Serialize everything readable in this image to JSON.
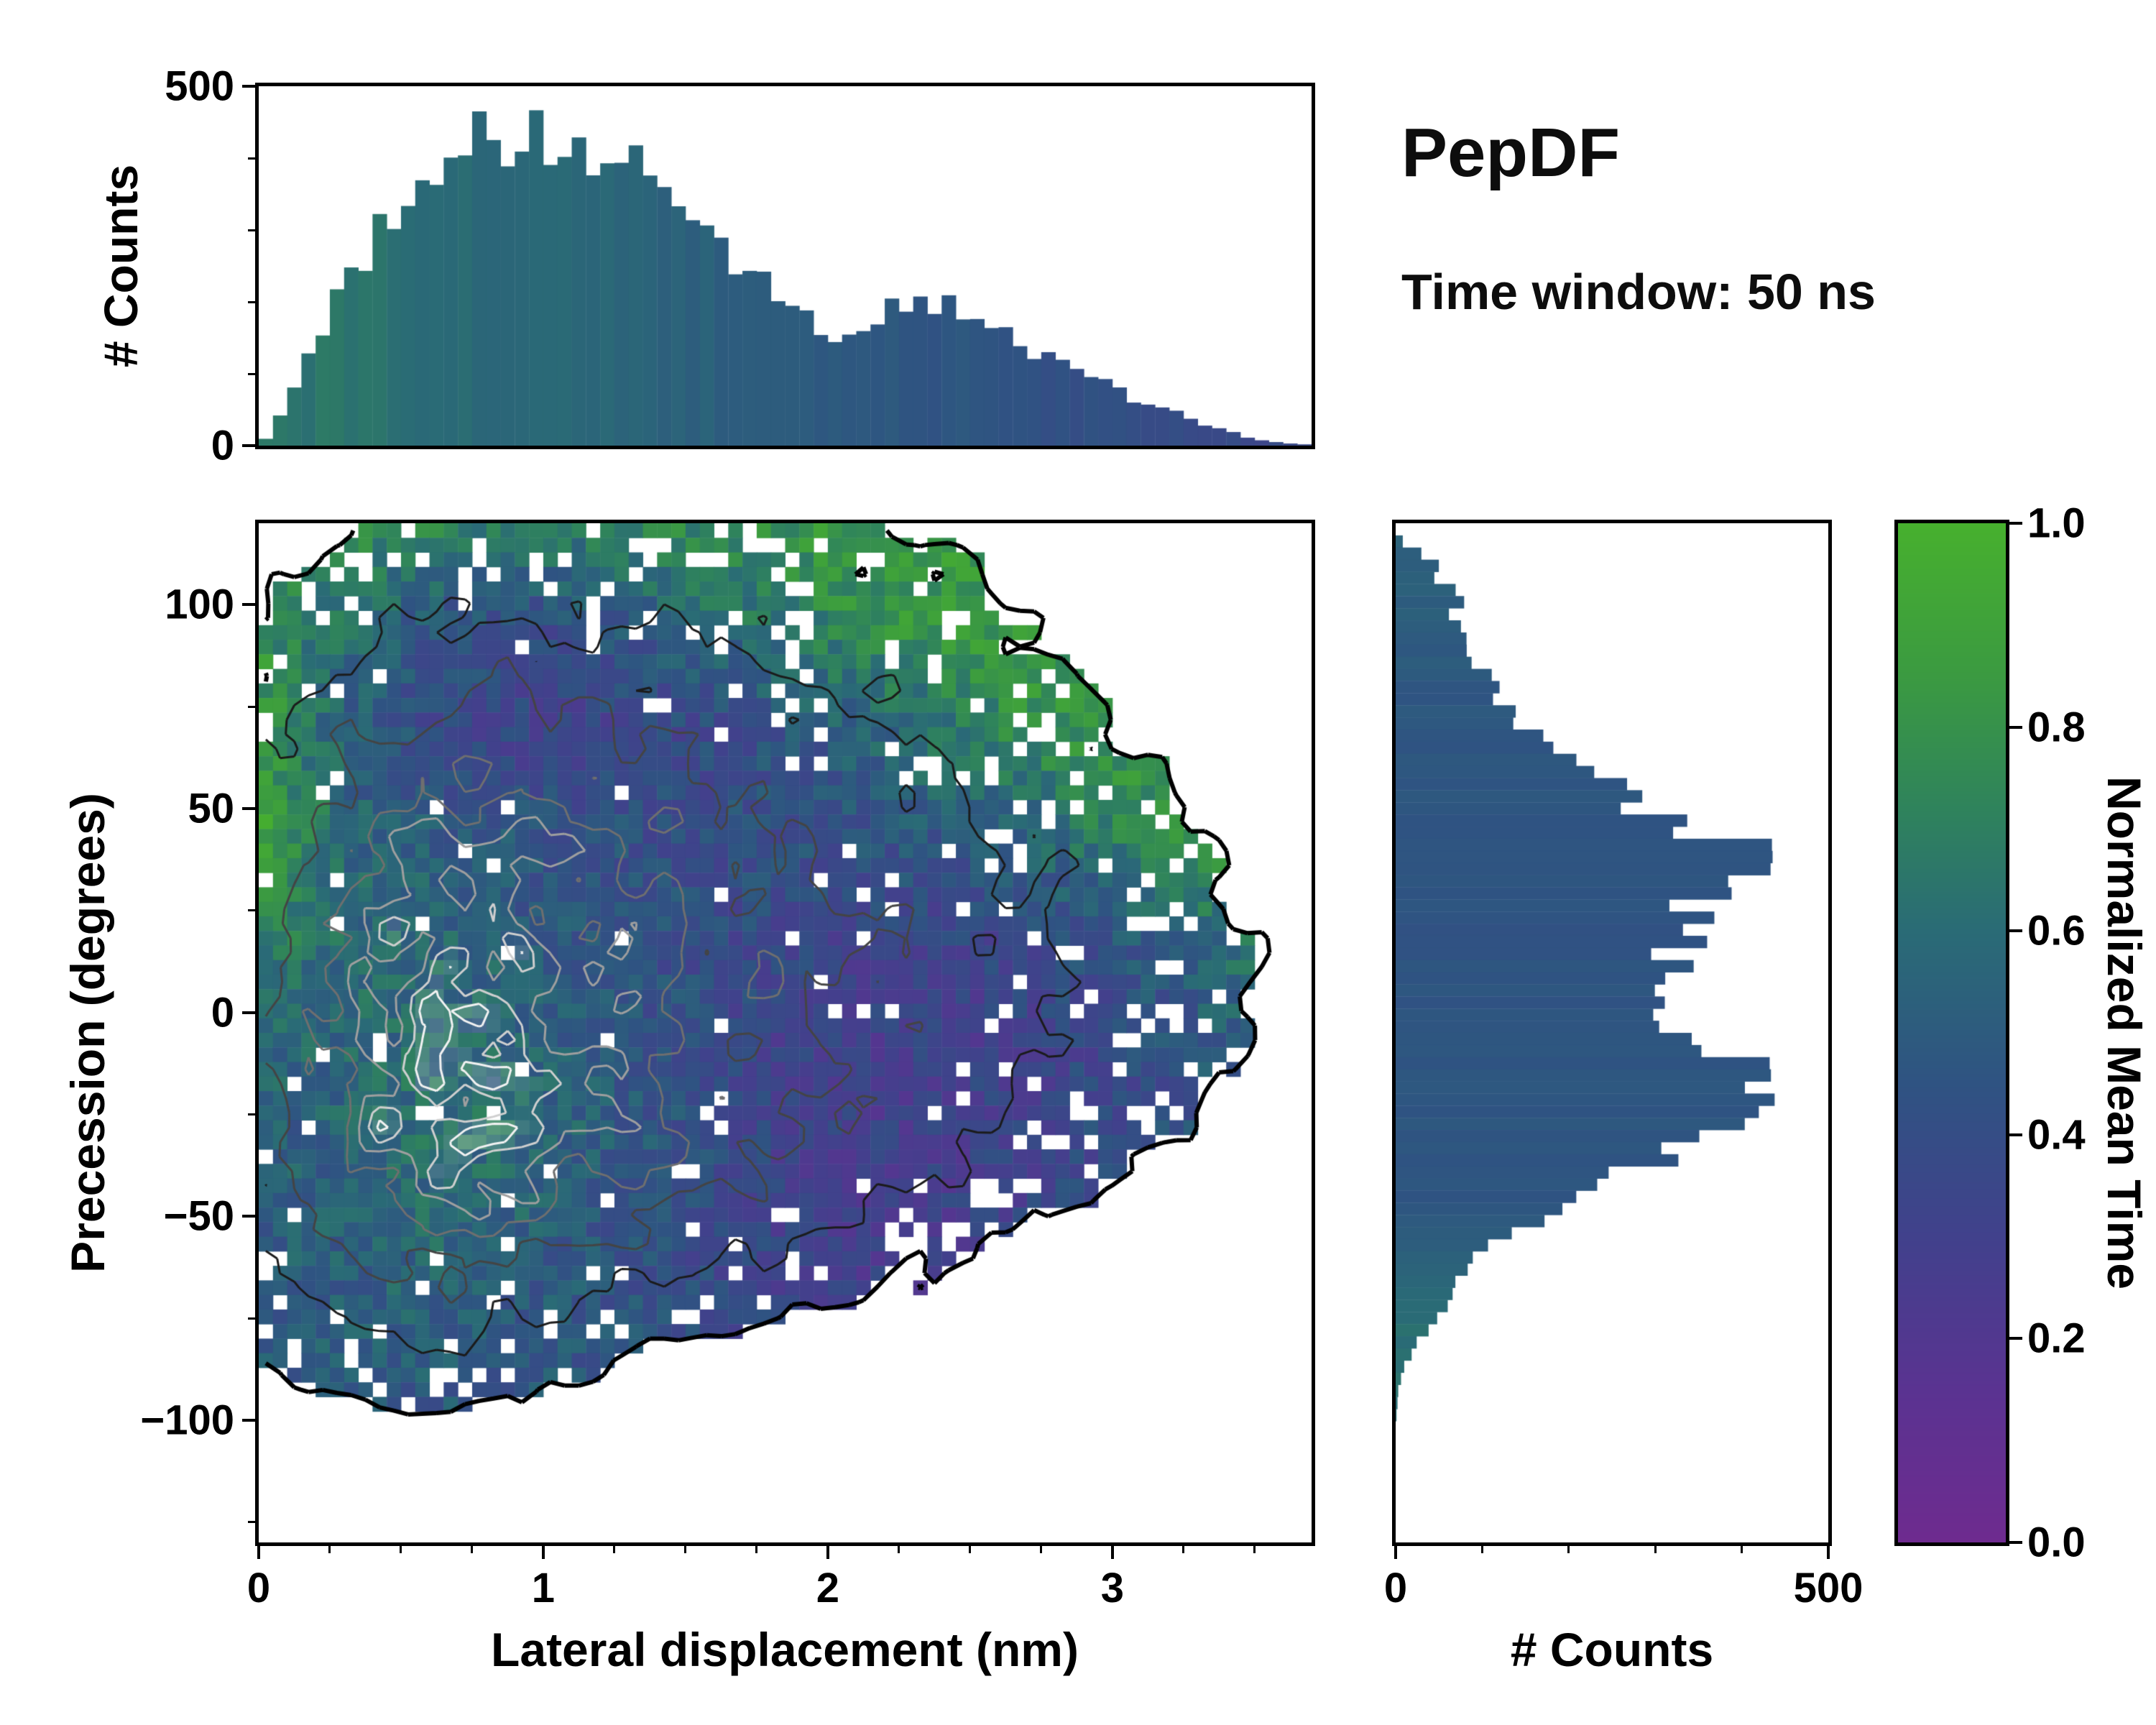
{
  "title": "PepDF",
  "subtitle": "Time window: 50 ns",
  "chart_data": [
    {
      "id": "top-histogram",
      "type": "bar",
      "ylabel": "# Counts",
      "x_range": [
        0,
        3.7
      ],
      "y_range": [
        0,
        500
      ],
      "y_ticks": [
        0,
        500
      ],
      "bin_width": 0.05,
      "bar_value_gradient": {
        "start": 0.66,
        "end": 0.36
      },
      "values": [
        10,
        40,
        80,
        120,
        160,
        200,
        230,
        260,
        295,
        315,
        340,
        370,
        400,
        420,
        432,
        445,
        450,
        430,
        420,
        425,
        415,
        420,
        410,
        400,
        415,
        405,
        390,
        370,
        345,
        330,
        310,
        300,
        280,
        262,
        240,
        230,
        210,
        195,
        175,
        160,
        150,
        155,
        165,
        180,
        190,
        196,
        200,
        190,
        200,
        185,
        175,
        160,
        150,
        140,
        130,
        120,
        110,
        100,
        95,
        85,
        75,
        65,
        55,
        50,
        45,
        35,
        30,
        25,
        18,
        12,
        8,
        5,
        3,
        2
      ]
    },
    {
      "id": "joint-heatmap",
      "type": "heatmap",
      "xlabel": "Lateral displacement (nm)",
      "ylabel": "Precession (degrees)",
      "colormap_label": "Normalized Mean Time",
      "x_range": [
        0,
        3.7
      ],
      "y_range": [
        -130,
        120
      ],
      "x_ticks": [
        0,
        1,
        2,
        3
      ],
      "y_ticks": [
        -100,
        -50,
        0,
        50,
        100
      ],
      "colorbar_ticks": [
        0,
        0.2,
        0.4,
        0.6,
        0.8,
        1
      ],
      "grid_nx": 74,
      "grid_ny": 70,
      "mask_threshold": 0.14,
      "colormap_stops": [
        [
          0,
          "#6e2b8f"
        ],
        [
          0.15,
          "#5a3391"
        ],
        [
          0.3,
          "#41418c"
        ],
        [
          0.45,
          "#2f5382"
        ],
        [
          0.6,
          "#2a6b76"
        ],
        [
          0.72,
          "#2f835c"
        ],
        [
          0.85,
          "#3b9a41"
        ],
        [
          1,
          "#47b02e"
        ]
      ],
      "contours": [
        {
          "level": 0.14,
          "color": "#000000",
          "width": 6
        },
        {
          "level": 0.3,
          "color": "#1b1b1b",
          "width": 3
        },
        {
          "level": 0.46,
          "color": "#444444",
          "width": 3
        },
        {
          "level": 0.62,
          "color": "#6f6f6f",
          "width": 3
        },
        {
          "level": 0.76,
          "color": "#9f9f9f",
          "width": 3
        },
        {
          "level": 0.88,
          "color": "#cfcfcf",
          "width": 3
        },
        {
          "level": 0.97,
          "color": "#f2f2f2",
          "width": 3
        }
      ],
      "density_grid": [
        [
          0.08,
          0.14,
          0.18,
          0.2,
          0.18,
          0.16,
          0.15,
          0.12,
          0.1,
          0.05,
          0.02,
          0,
          0
        ],
        [
          0.14,
          0.26,
          0.32,
          0.34,
          0.3,
          0.28,
          0.26,
          0.22,
          0.18,
          0.12,
          0.05,
          0.02,
          0
        ],
        [
          0.22,
          0.38,
          0.48,
          0.52,
          0.46,
          0.4,
          0.35,
          0.3,
          0.26,
          0.2,
          0.12,
          0.05,
          0.02
        ],
        [
          0.32,
          0.58,
          0.72,
          0.76,
          0.66,
          0.55,
          0.46,
          0.4,
          0.35,
          0.28,
          0.2,
          0.13,
          0.06
        ],
        [
          0.36,
          0.66,
          0.86,
          0.82,
          0.7,
          0.6,
          0.52,
          0.45,
          0.38,
          0.3,
          0.22,
          0.16,
          0.08
        ],
        [
          0.4,
          0.72,
          0.92,
          0.86,
          0.74,
          0.62,
          0.53,
          0.46,
          0.38,
          0.3,
          0.22,
          0.16,
          0.08
        ],
        [
          0.38,
          0.7,
          1.0,
          0.96,
          0.76,
          0.62,
          0.5,
          0.42,
          0.35,
          0.26,
          0.18,
          0.11,
          0.05
        ],
        [
          0.32,
          0.52,
          0.62,
          0.56,
          0.46,
          0.38,
          0.32,
          0.25,
          0.18,
          0.1,
          0.05,
          0.02,
          0
        ],
        [
          0.16,
          0.26,
          0.32,
          0.26,
          0.18,
          0.12,
          0.08,
          0.04,
          0.02,
          0,
          0,
          0,
          0
        ],
        [
          0.02,
          0.06,
          0.08,
          0.06,
          0.02,
          0,
          0,
          0,
          0,
          0,
          0,
          0,
          0
        ],
        [
          0,
          0,
          0,
          0,
          0,
          0,
          0,
          0,
          0,
          0,
          0,
          0,
          0
        ]
      ],
      "mean_time_grid": [
        [
          0.82,
          0.78,
          0.72,
          0.66,
          0.7,
          0.76,
          0.82,
          0.84,
          0.85,
          0.85,
          0.85,
          0.85,
          0.85
        ],
        [
          0.8,
          0.6,
          0.45,
          0.4,
          0.45,
          0.55,
          0.68,
          0.78,
          0.84,
          0.85,
          0.85,
          0.85,
          0.85
        ],
        [
          0.85,
          0.52,
          0.38,
          0.32,
          0.33,
          0.38,
          0.45,
          0.55,
          0.68,
          0.8,
          0.85,
          0.85,
          0.85
        ],
        [
          0.9,
          0.56,
          0.5,
          0.45,
          0.42,
          0.4,
          0.42,
          0.45,
          0.5,
          0.6,
          0.75,
          0.85,
          0.85
        ],
        [
          0.72,
          0.6,
          0.56,
          0.5,
          0.45,
          0.4,
          0.37,
          0.34,
          0.35,
          0.4,
          0.5,
          0.62,
          0.68
        ],
        [
          0.56,
          0.56,
          0.6,
          0.55,
          0.46,
          0.4,
          0.32,
          0.29,
          0.3,
          0.32,
          0.4,
          0.5,
          0.55
        ],
        [
          0.5,
          0.56,
          0.64,
          0.6,
          0.5,
          0.42,
          0.32,
          0.28,
          0.3,
          0.34,
          0.4,
          0.45,
          0.48
        ],
        [
          0.5,
          0.52,
          0.56,
          0.52,
          0.46,
          0.4,
          0.31,
          0.28,
          0.3,
          0.35,
          0.4,
          0.42,
          0.42
        ],
        [
          0.48,
          0.52,
          0.52,
          0.48,
          0.45,
          0.4,
          0.35,
          0.3,
          0.3,
          0.3,
          0.32,
          0.32,
          0.32
        ],
        [
          0.46,
          0.46,
          0.46,
          0.46,
          0.44,
          0.42,
          0.4,
          0.4,
          0.4,
          0.4,
          0.4,
          0.4,
          0.4
        ],
        [
          0.46,
          0.46,
          0.46,
          0.46,
          0.44,
          0.42,
          0.4,
          0.4,
          0.4,
          0.4,
          0.4,
          0.4,
          0.4
        ]
      ]
    },
    {
      "id": "right-histogram",
      "type": "bar",
      "xlabel": "# Counts",
      "x_range": [
        0,
        500
      ],
      "x_ticks": [
        0,
        500
      ],
      "y_range": [
        -130,
        120
      ],
      "bar_value_base": 0.46,
      "values": [
        0,
        8,
        30,
        55,
        45,
        65,
        75,
        60,
        70,
        85,
        75,
        90,
        105,
        120,
        110,
        135,
        150,
        165,
        185,
        200,
        220,
        245,
        260,
        285,
        310,
        355,
        420,
        435,
        400,
        380,
        360,
        345,
        335,
        345,
        330,
        320,
        335,
        320,
        310,
        300,
        295,
        310,
        335,
        365,
        395,
        420,
        440,
        430,
        415,
        390,
        360,
        330,
        300,
        270,
        240,
        215,
        185,
        160,
        135,
        110,
        95,
        80,
        70,
        60,
        55,
        45,
        35,
        25,
        18,
        10,
        6,
        3,
        2,
        1,
        0,
        0,
        0,
        0,
        0,
        0,
        0,
        0,
        0,
        0
      ]
    }
  ]
}
